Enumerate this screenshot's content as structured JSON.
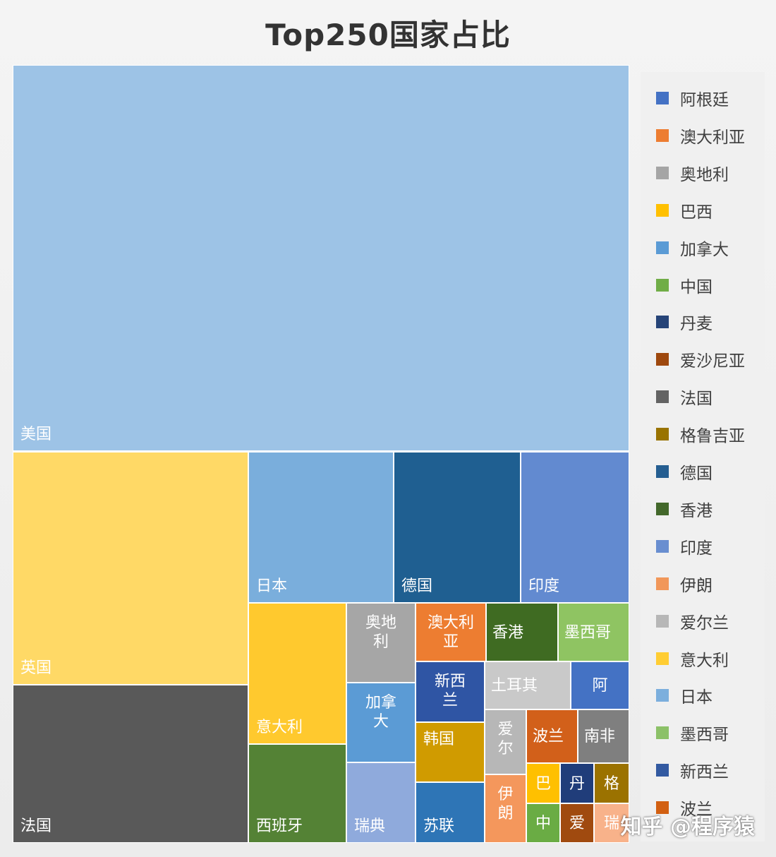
{
  "chart_data": {
    "type": "treemap",
    "title": "Top250国家占比",
    "legend_position": "right",
    "legend": [
      {
        "name": "阿根廷",
        "color": "#4472c4"
      },
      {
        "name": "澳大利亚",
        "color": "#ed7d31"
      },
      {
        "name": "奥地利",
        "color": "#a5a5a5"
      },
      {
        "name": "巴西",
        "color": "#ffc000"
      },
      {
        "name": "加拿大",
        "color": "#5b9bd5"
      },
      {
        "name": "中国",
        "color": "#70ad47"
      },
      {
        "name": "丹麦",
        "color": "#264478"
      },
      {
        "name": "爱沙尼亚",
        "color": "#9e480e"
      },
      {
        "name": "法国",
        "color": "#636363"
      },
      {
        "name": "格鲁吉亚",
        "color": "#997300"
      },
      {
        "name": "德国",
        "color": "#255e91"
      },
      {
        "name": "香港",
        "color": "#43682b"
      },
      {
        "name": "印度",
        "color": "#698ed0"
      },
      {
        "name": "伊朗",
        "color": "#f1975a"
      },
      {
        "name": "爱尔兰",
        "color": "#b7b7b7"
      },
      {
        "name": "意大利",
        "color": "#ffcd33"
      },
      {
        "name": "日本",
        "color": "#7cafdd"
      },
      {
        "name": "墨西哥",
        "color": "#8cc168"
      },
      {
        "name": "新西兰",
        "color": "#335aa1"
      },
      {
        "name": "波兰",
        "color": "#d26012"
      }
    ],
    "tiles": [
      {
        "label": "美国",
        "value": 144,
        "color": "#9dc3e6"
      },
      {
        "label": "英国",
        "value": 30,
        "color": "#ffd966"
      },
      {
        "label": "法国",
        "value": 20,
        "color": "#595959"
      },
      {
        "label": "日本",
        "value": 13,
        "color": "#7aaedc"
      },
      {
        "label": "德国",
        "value": 11,
        "color": "#1f5f91"
      },
      {
        "label": "印度",
        "value": 9,
        "color": "#628ad0"
      },
      {
        "label": "意大利",
        "value": 8,
        "color": "#ffc92e"
      },
      {
        "label": "西班牙",
        "value": 6,
        "color": "#548235"
      },
      {
        "label": "奥地\n利",
        "value": 3,
        "color": "#a6a6a6"
      },
      {
        "label": "加拿\n大",
        "value": 4,
        "color": "#5b9bd5"
      },
      {
        "label": "瑞典",
        "value": 4,
        "color": "#8faadc"
      },
      {
        "label": "澳大利\n亚",
        "value": 3,
        "color": "#ed7d31"
      },
      {
        "label": "新西\n兰",
        "value": 3,
        "color": "#2f55a4"
      },
      {
        "label": "韩国",
        "value": 3,
        "color": "#d09b00"
      },
      {
        "label": "苏联",
        "value": 3,
        "color": "#2e75b6"
      },
      {
        "label": "香港",
        "value": 2,
        "color": "#3f6b22"
      },
      {
        "label": "墨西哥",
        "value": 2,
        "color": "#8fc462"
      },
      {
        "label": "土耳其",
        "value": 2,
        "color": "#c9c9c9"
      },
      {
        "label": "阿",
        "value": 1,
        "color": "#4472c4"
      },
      {
        "label": "爱\n尔",
        "value": 1,
        "color": "#b7b7b7"
      },
      {
        "label": "伊\n朗",
        "value": 1,
        "color": "#f4975c"
      },
      {
        "label": "波兰",
        "value": 1,
        "color": "#d2601a"
      },
      {
        "label": "南非",
        "value": 1,
        "color": "#7f7f7f"
      },
      {
        "label": "巴",
        "value": 1,
        "color": "#ffc000"
      },
      {
        "label": "丹",
        "value": 1,
        "color": "#203d7a"
      },
      {
        "label": "格",
        "value": 1,
        "color": "#9b7200"
      },
      {
        "label": "中",
        "value": 1,
        "color": "#6aac44"
      },
      {
        "label": "爱",
        "value": 1,
        "color": "#a04a0f"
      },
      {
        "label": "瑞",
        "value": 1,
        "color": "#f8b28a"
      }
    ]
  },
  "watermark": "知乎 @程序猿"
}
